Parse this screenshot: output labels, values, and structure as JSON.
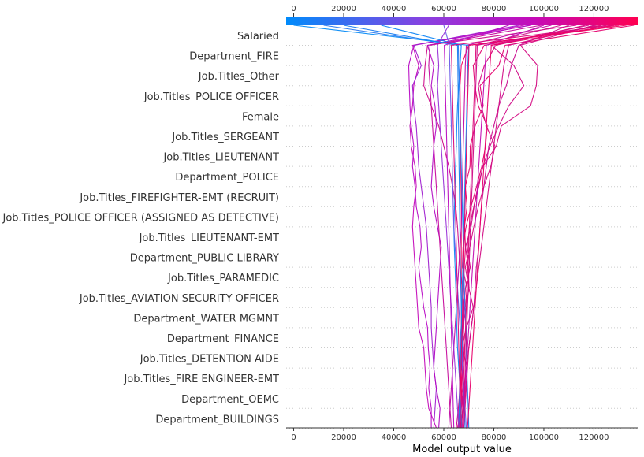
{
  "chart_data": {
    "type": "line",
    "subtype": "shap-decision-plot",
    "xlabel": "Model output value",
    "xlim": [
      -3000,
      137500
    ],
    "x_ticks": [
      0,
      20000,
      40000,
      60000,
      80000,
      100000,
      120000
    ],
    "x_tick_labels": [
      "0",
      "20000",
      "40000",
      "60000",
      "80000",
      "100000",
      "120000"
    ],
    "colorbar": {
      "position": "top",
      "ticks": [
        0,
        20000,
        40000,
        60000,
        80000,
        100000,
        120000
      ],
      "tick_labels": [
        "0",
        "20000",
        "40000",
        "60000",
        "80000",
        "100000",
        "120000"
      ],
      "colors": [
        "#008bfb",
        "#8a40e0",
        "#c40ab9",
        "#ff0051"
      ]
    },
    "grid": "dotted horizontal",
    "features": [
      "Salaried",
      "Department_FIRE",
      "Job.Titles_Other",
      "Job.Titles_POLICE OFFICER",
      "Female",
      "Job.Titles_SERGEANT",
      "Job.Titles_LIEUTENANT",
      "Department_POLICE",
      "Job.Titles_FIREFIGHTER-EMT (RECRUIT)",
      "Job.Titles_POLICE OFFICER (ASSIGNED AS DETECTIVE)",
      "Job.Titles_LIEUTENANT-EMT",
      "Department_PUBLIC LIBRARY",
      "Job.Titles_PARAMEDIC",
      "Job.Titles_AVIATION SECURITY OFFICER",
      "Department_WATER MGMNT",
      "Department_FINANCE",
      "Job.Titles_DETENTION AIDE",
      "Job.Titles_FIRE ENGINEER-EMT",
      "Department_OEMC",
      "Department_BUILDINGS"
    ],
    "base_value": 67000,
    "series": [
      {
        "color": "#e4006e",
        "values": [
          67000,
          67600,
          67000,
          67500,
          67500,
          67600,
          67800,
          67900,
          68200,
          68700,
          68300,
          69300,
          68600,
          70500,
          70600,
          72500,
          75800,
          74500,
          82000,
          84500,
          136000
        ]
      },
      {
        "color": "#f1005c",
        "values": [
          67000,
          67000,
          67000,
          67000,
          67000,
          67000,
          67000,
          67000,
          67000,
          67000,
          67000,
          67000,
          66900,
          66800,
          66800,
          66700,
          66600,
          66500,
          67000,
          70000,
          133000
        ]
      },
      {
        "color": "#e1006f",
        "values": [
          66500,
          68100,
          68800,
          69400,
          67400,
          68900,
          68600,
          69300,
          67400,
          67700,
          68900,
          70900,
          73100,
          75200,
          76700,
          77400,
          73800,
          72400,
          71800,
          76200,
          123000
        ]
      },
      {
        "color": "#d40a82",
        "values": [
          66500,
          67800,
          68200,
          67200,
          67900,
          67700,
          68000,
          68700,
          70600,
          69400,
          70300,
          72000,
          73600,
          75700,
          81000,
          83000,
          94700,
          97000,
          97500,
          90600,
          120000
        ]
      },
      {
        "color": "#d00a87",
        "values": [
          65800,
          66100,
          66300,
          66500,
          66600,
          67500,
          69000,
          70100,
          69800,
          68700,
          70900,
          72100,
          74000,
          75600,
          78500,
          82000,
          86000,
          92000,
          88000,
          79000,
          118000
        ]
      },
      {
        "color": "#d60a80",
        "values": [
          65500,
          66800,
          67500,
          67600,
          68300,
          69000,
          71800,
          70000,
          68600,
          70400,
          72000,
          73800,
          76000,
          78800,
          80500,
          77000,
          75000,
          73800,
          76200,
          80800,
          116500
        ]
      },
      {
        "color": "#c90a8e",
        "values": [
          66000,
          67000,
          68000,
          69000,
          70000,
          71000,
          72000,
          72500,
          73000,
          74000,
          74500,
          75000,
          76000,
          77000,
          78000,
          80000,
          82000,
          85000,
          87000,
          90000,
          110000
        ]
      },
      {
        "color": "#cc0a8a",
        "values": [
          65000,
          65800,
          66500,
          67000,
          67500,
          68000,
          68200,
          67500,
          66500,
          66000,
          65500,
          64800,
          63500,
          62000,
          60000,
          58000,
          55000,
          52000,
          52500,
          53500,
          113000
        ]
      },
      {
        "color": "#c40ab9",
        "values": [
          57000,
          54000,
          53000,
          52500,
          52000,
          50000,
          49500,
          49000,
          48500,
          48000,
          47500,
          48000,
          49000,
          48500,
          47000,
          46500,
          47500,
          48000,
          50000,
          47500,
          92000
        ]
      },
      {
        "color": "#b80ac5",
        "values": [
          55000,
          55000,
          54000,
          54500,
          53800,
          53500,
          52000,
          51000,
          50000,
          51000,
          50500,
          49000,
          48500,
          47500,
          48000,
          47000,
          46500,
          46200,
          46000,
          48000,
          95000
        ]
      },
      {
        "color": "#a020d0",
        "values": [
          56000,
          56500,
          57000,
          56000,
          55500,
          55000,
          55000,
          54500,
          54000,
          53500,
          53000,
          52000,
          51000,
          50000,
          49500,
          49000,
          48000,
          47500,
          51000,
          48000,
          90000
        ]
      },
      {
        "color": "#b20ac3",
        "values": [
          58000,
          58500,
          57000,
          56000,
          56500,
          57000,
          57500,
          58000,
          58500,
          59000,
          57500,
          56000,
          55000,
          55500,
          56000,
          57000,
          56500,
          55000,
          56000,
          53500,
          94000
        ]
      },
      {
        "color": "#c00aa8",
        "values": [
          62000,
          62500,
          63000,
          63500,
          64000,
          64500,
          65000,
          65500,
          66000,
          66500,
          67000,
          67200,
          67400,
          67600,
          67800,
          68000,
          68200,
          68400,
          68600,
          69000,
          103000
        ]
      },
      {
        "color": "#0f85f5",
        "values": [
          67000,
          66800,
          66500,
          66000,
          65500,
          65200,
          65000,
          64800,
          64500,
          64200,
          64000,
          64300,
          64500,
          64700,
          65000,
          65200,
          65500,
          66000,
          66500,
          67000,
          35000
        ]
      },
      {
        "color": "#1a7ef0",
        "values": [
          68500,
          68200,
          68000,
          67800,
          67500,
          67200,
          67000,
          66800,
          66600,
          66500,
          66400,
          66300,
          66200,
          66100,
          66000,
          65900,
          65800,
          65700,
          65600,
          65500,
          20000
        ]
      },
      {
        "color": "#2a78ee",
        "values": [
          70000,
          69800,
          69500,
          69200,
          69000,
          68800,
          68500,
          68200,
          68000,
          67800,
          67600,
          67400,
          67200,
          67000,
          66800,
          66600,
          66400,
          66200,
          66000,
          65800,
          12000
        ]
      },
      {
        "color": "#0a8cf5",
        "values": [
          66000,
          66200,
          66400,
          66600,
          66800,
          67000,
          67200,
          67400,
          67600,
          67800,
          68000,
          68200,
          68400,
          68600,
          68800,
          69000,
          69200,
          69400,
          69600,
          70000,
          0
        ]
      },
      {
        "color": "#6a5ae8",
        "values": [
          69000,
          68500,
          68000,
          67500,
          67000,
          66500,
          66000,
          65500,
          65000,
          64500,
          64000,
          63800,
          63600,
          63400,
          63200,
          63000,
          62800,
          62600,
          62400,
          62200,
          60000
        ]
      },
      {
        "color": "#9a30d8",
        "values": [
          66000,
          65500,
          65000,
          64500,
          64000,
          63500,
          63000,
          62500,
          62000,
          61500,
          61000,
          60500,
          60000,
          59500,
          59000,
          58500,
          58000,
          57500,
          58000,
          57500,
          62000
        ]
      },
      {
        "color": "#c20ab0",
        "values": [
          67500,
          68000,
          68500,
          69000,
          69500,
          70000,
          70500,
          71000,
          71500,
          72000,
          72500,
          73000,
          73500,
          74000,
          74500,
          75000,
          75500,
          76000,
          76500,
          77000,
          100000
        ]
      },
      {
        "color": "#dc0a78",
        "values": [
          67200,
          67500,
          67800,
          68100,
          68400,
          68700,
          69000,
          69300,
          69600,
          69900,
          70200,
          70500,
          70800,
          71100,
          71400,
          71700,
          72000,
          72300,
          72600,
          72900,
          125000
        ]
      },
      {
        "color": "#d80a7c",
        "values": [
          66800,
          66600,
          66400,
          66200,
          66000,
          65800,
          65600,
          65400,
          65200,
          65000,
          64800,
          64600,
          64400,
          64200,
          64000,
          63800,
          63600,
          63400,
          63200,
          63000,
          127000
        ]
      },
      {
        "color": "#c60a9c",
        "values": [
          63000,
          62500,
          62000,
          61500,
          61000,
          60500,
          60000,
          59500,
          59000,
          58500,
          58000,
          57500,
          57000,
          56500,
          56000,
          55500,
          55000,
          54500,
          54000,
          54500,
          99000
        ]
      },
      {
        "color": "#d20a84",
        "values": [
          68000,
          68500,
          69000,
          69500,
          70000,
          71000,
          72000,
          73000,
          74000,
          75000,
          76000,
          77000,
          78000,
          79000,
          80000,
          81000,
          82000,
          83000,
          84000,
          86000,
          121000
        ]
      },
      {
        "color": "#e8006a",
        "values": [
          69500,
          70000,
          70500,
          71000,
          71500,
          72000,
          72500,
          73000,
          73500,
          74000,
          74500,
          75000,
          75500,
          76000,
          76500,
          77000,
          77500,
          78000,
          78500,
          79000,
          128000
        ]
      },
      {
        "color": "#ba0ac0",
        "values": [
          64000,
          63800,
          63600,
          63400,
          63200,
          63000,
          62800,
          62600,
          62400,
          62200,
          62000,
          61800,
          61600,
          61400,
          61200,
          61000,
          60800,
          60600,
          60400,
          60200,
          86000
        ]
      },
      {
        "color": "#cf0a88",
        "values": [
          67700,
          68000,
          68300,
          68600,
          68900,
          69200,
          69500,
          69800,
          70100,
          70400,
          70700,
          71000,
          71300,
          71600,
          71900,
          72200,
          72500,
          72800,
          73100,
          73400,
          107000
        ]
      },
      {
        "color": "#ea0066",
        "values": [
          66300,
          66500,
          66700,
          66900,
          67100,
          67300,
          67500,
          67700,
          67900,
          68100,
          68300,
          68500,
          68700,
          68900,
          69100,
          69300,
          69500,
          69700,
          69900,
          70100,
          130000
        ]
      }
    ]
  }
}
